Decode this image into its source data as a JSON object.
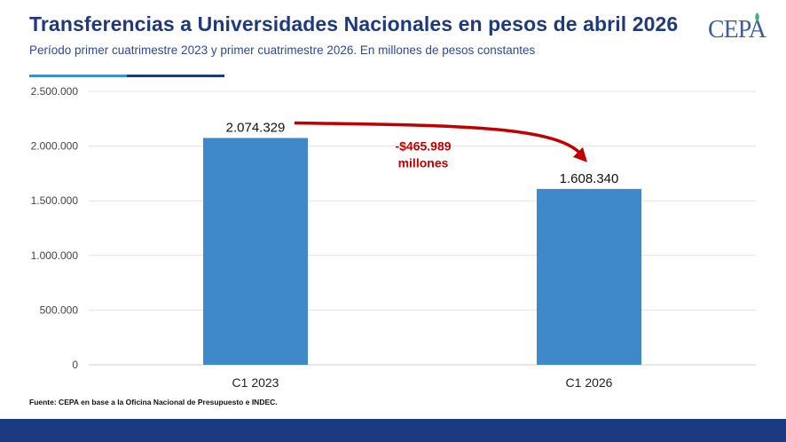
{
  "header": {
    "title": "Transferencias a Universidades Nacionales en pesos de abril 2026",
    "subtitle": "Período primer cuatrimestre 2023 y primer cuatrimestre 2026. En millones de pesos constantes"
  },
  "logo": {
    "text": "CEPA"
  },
  "chart_data": {
    "type": "bar",
    "categories": [
      "C1 2023",
      "C1 2026"
    ],
    "values": [
      2074329,
      1608340
    ],
    "value_labels": [
      "2.074.329",
      "1.608.340"
    ],
    "ylim": [
      0,
      2500000
    ],
    "yticks": [
      0,
      500000,
      1000000,
      1500000,
      2000000,
      2500000
    ],
    "ytick_labels": [
      "0",
      "500.000",
      "1.000.000",
      "1.500.000",
      "2.000.000",
      "2.500.000"
    ],
    "grid": true,
    "bar_color": "#3f88c9",
    "annotation": {
      "line1": "-$465.989",
      "line2": "millones",
      "color": "#c00000"
    }
  },
  "footer": {
    "source": "Fuente: CEPA en base a la Oficina Nacional de Presupuesto e INDEC."
  },
  "colors": {
    "title": "#1f3a7a",
    "footer_bar": "#1b3a82",
    "accent_light": "#3d8fd1"
  }
}
